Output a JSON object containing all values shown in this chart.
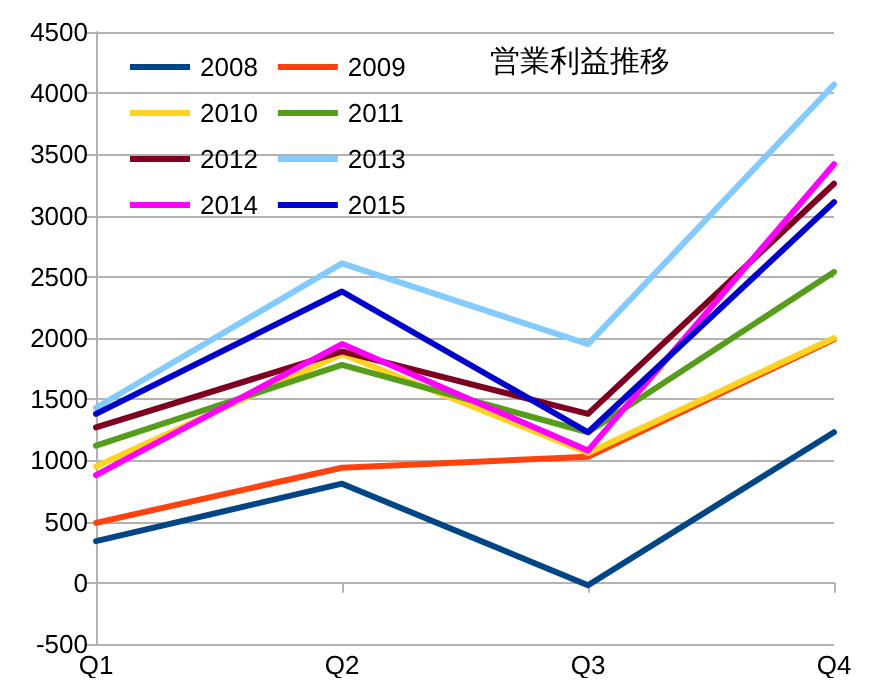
{
  "chart_data": {
    "type": "line",
    "title": "営業利益推移",
    "categories": [
      "Q1",
      "Q2",
      "Q3",
      "Q4"
    ],
    "series": [
      {
        "name": "2008",
        "color": "#004586",
        "values": [
          340,
          810,
          -20,
          1230
        ]
      },
      {
        "name": "2009",
        "color": "#ff420e",
        "values": [
          490,
          940,
          1030,
          1990
        ]
      },
      {
        "name": "2010",
        "color": "#ffd320",
        "values": [
          950,
          1870,
          1060,
          2000
        ]
      },
      {
        "name": "2011",
        "color": "#579d1c",
        "values": [
          1120,
          1780,
          1230,
          2540
        ]
      },
      {
        "name": "2012",
        "color": "#7e0021",
        "values": [
          1270,
          1890,
          1380,
          3260
        ]
      },
      {
        "name": "2013",
        "color": "#83caff",
        "values": [
          1430,
          2610,
          1950,
          4070
        ]
      },
      {
        "name": "2014",
        "color": "#ff00ff",
        "values": [
          880,
          1950,
          1080,
          3420
        ]
      },
      {
        "name": "2015",
        "color": "#0000cc",
        "values": [
          1380,
          2380,
          1230,
          3110
        ]
      }
    ],
    "ylim": [
      -500,
      4500
    ],
    "yticks": [
      -500,
      0,
      500,
      1000,
      1500,
      2000,
      2500,
      3000,
      3500,
      4000,
      4500
    ],
    "grid": "y",
    "legend": "top left",
    "marker": "none",
    "line_style": "solid"
  }
}
